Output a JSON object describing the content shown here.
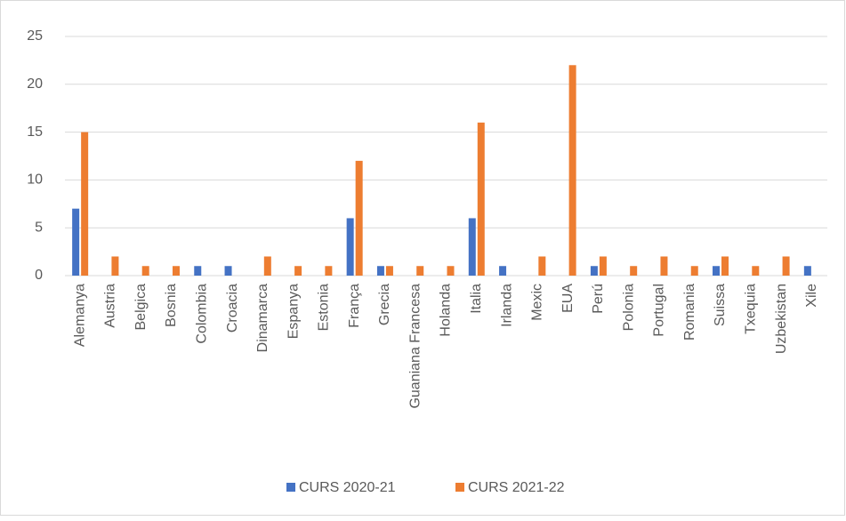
{
  "chart_data": {
    "type": "bar",
    "categories": [
      "Alemanya",
      "Austria",
      "Belgica",
      "Bosnia",
      "Colombia",
      "Croacia",
      "Dinamarca",
      "Espanya",
      "Estonia",
      "França",
      "Grecia",
      "Guaniana Francesa",
      "Holanda",
      "Italia",
      "Irlanda",
      "Mexic",
      "EUA",
      "Perú",
      "Polonia",
      "Portugal",
      "Romania",
      "Suissa",
      "Txequia",
      "Uzbekistan",
      "Xile"
    ],
    "series": [
      {
        "name": "CURS 2020-21",
        "color": "#4472c4",
        "values": [
          7,
          null,
          null,
          null,
          1,
          1,
          null,
          null,
          null,
          6,
          1,
          null,
          null,
          6,
          1,
          null,
          null,
          1,
          null,
          null,
          null,
          1,
          null,
          null,
          1
        ]
      },
      {
        "name": "CURS 2021-22",
        "color": "#ed7d31",
        "values": [
          15,
          2,
          1,
          1,
          null,
          null,
          2,
          1,
          1,
          12,
          1,
          1,
          1,
          16,
          null,
          2,
          22,
          2,
          1,
          2,
          1,
          2,
          1,
          2,
          null
        ]
      }
    ],
    "ylim": [
      0,
      25
    ],
    "yticks": [
      0,
      5,
      10,
      15,
      20,
      25
    ],
    "grid": true,
    "legend": "bottom"
  }
}
